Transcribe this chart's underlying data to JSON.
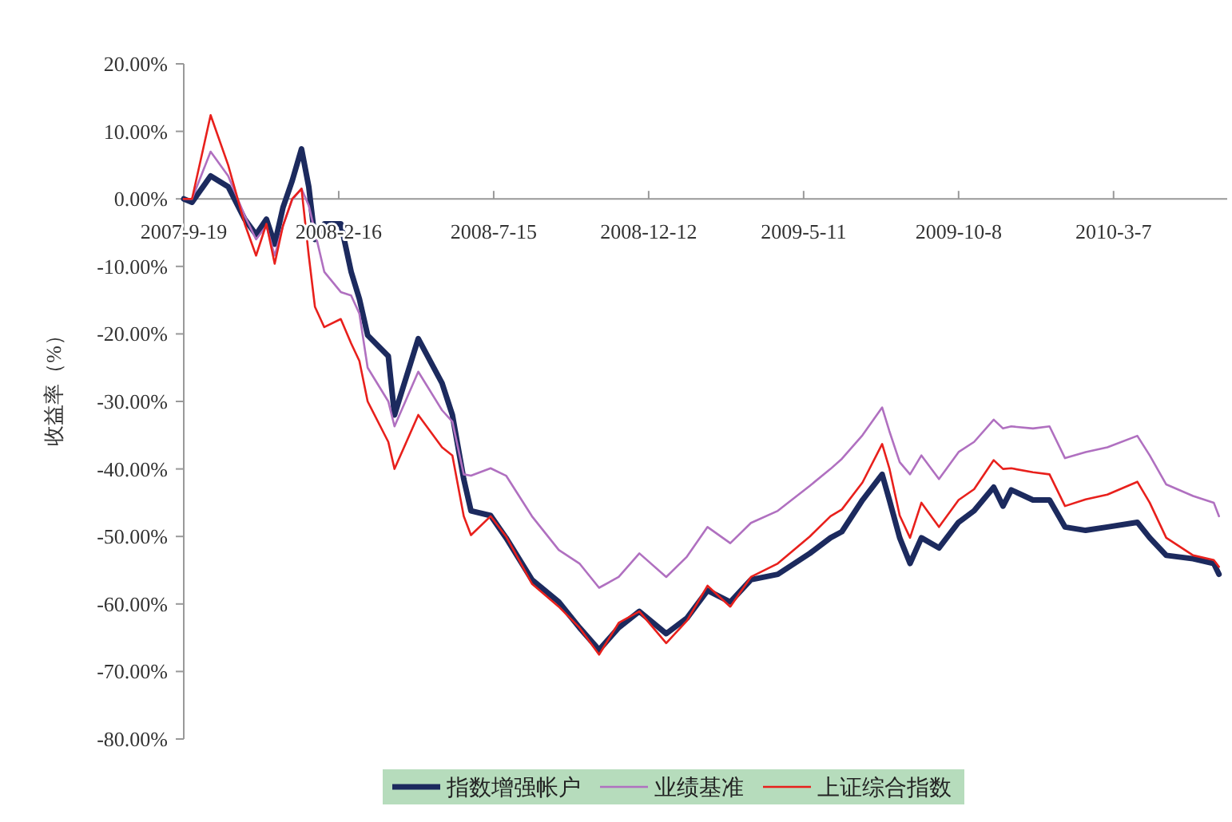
{
  "chart_data": {
    "type": "line",
    "ylabel": "收益率（%）",
    "x": [
      "2007-09-19",
      "2007-09-27",
      "2007-10-15",
      "2007-11-01",
      "2007-11-17",
      "2007-11-28",
      "2007-12-08",
      "2007-12-16",
      "2007-12-24",
      "2008-01-02",
      "2008-01-11",
      "2008-01-18",
      "2008-01-24",
      "2008-02-02",
      "2008-02-18",
      "2008-02-28",
      "2008-03-07",
      "2008-03-15",
      "2008-04-04",
      "2008-04-10",
      "2008-05-03",
      "2008-05-26",
      "2008-06-05",
      "2008-06-16",
      "2008-06-23",
      "2008-07-12",
      "2008-07-27",
      "2008-08-21",
      "2008-09-16",
      "2008-10-06",
      "2008-10-25",
      "2008-11-13",
      "2008-12-03",
      "2008-12-29",
      "2009-01-18",
      "2009-02-07",
      "2009-03-01",
      "2009-03-21",
      "2009-04-16",
      "2009-05-17",
      "2009-06-06",
      "2009-06-17",
      "2009-07-07",
      "2009-07-26",
      "2009-08-02",
      "2009-08-12",
      "2009-08-22",
      "2009-09-02",
      "2009-09-19",
      "2009-10-08",
      "2009-10-23",
      "2009-11-11",
      "2009-11-20",
      "2009-11-28",
      "2009-12-19",
      "2010-01-04",
      "2010-01-19",
      "2010-02-08",
      "2010-03-01",
      "2010-03-30",
      "2010-04-11",
      "2010-04-27",
      "2010-05-23",
      "2010-06-12",
      "2010-06-17"
    ],
    "series": [
      {
        "name": "指数增强帐户",
        "color": "#1c2a5e",
        "values": [
          0,
          -0.5,
          3.4,
          1.8,
          -3,
          -5.3,
          -3,
          -6.7,
          -1.3,
          2.7,
          7.4,
          1.8,
          -6,
          -3.7,
          -3.7,
          -10.8,
          -14.8,
          -20.2,
          -23.3,
          -32,
          -20.7,
          -27.3,
          -32,
          -41.5,
          -46.2,
          -46.9,
          -50.2,
          -56.4,
          -59.7,
          -63.5,
          -66.8,
          -63.5,
          -61.1,
          -64.4,
          -62.1,
          -58,
          -59.7,
          -56.4,
          -55.6,
          -52.5,
          -50.2,
          -49.3,
          -44.6,
          -40.8,
          -44.6,
          -50.2,
          -54,
          -50.2,
          -51.7,
          -47.9,
          -46.2,
          -42.7,
          -45.5,
          -43.1,
          -44.6,
          -44.6,
          -48.6,
          -49.1,
          -48.6,
          -47.9,
          -50.2,
          -52.8,
          -53.3,
          -54,
          -55.6
        ]
      },
      {
        "name": "业绩基准",
        "color": "#b070c0",
        "values": [
          0,
          0,
          7,
          3.4,
          -2.5,
          -6,
          -4,
          -8.4,
          -4,
          -0.1,
          1.5,
          -1,
          -4.9,
          -10.8,
          -13.8,
          -14.3,
          -17,
          -25,
          -30,
          -33.7,
          -25.6,
          -31.3,
          -33,
          -40.8,
          -41,
          -39.9,
          -41,
          -47,
          -52,
          -54,
          -57.6,
          -56,
          -52.5,
          -56,
          -53,
          -48.6,
          -51,
          -48,
          -46.2,
          -42.5,
          -40,
          -38.5,
          -35,
          -30.9,
          -34.4,
          -39,
          -40.8,
          -38,
          -41.5,
          -37.5,
          -36,
          -32.7,
          -34,
          -33.7,
          -34,
          -33.7,
          -38.4,
          -37.5,
          -36.8,
          -35.1,
          -38,
          -42.3,
          -44,
          -45,
          -47
        ]
      },
      {
        "name": "上证综合指数",
        "color": "#e8201c",
        "values": [
          0,
          0,
          12.4,
          5,
          -3.7,
          -8.4,
          -3.7,
          -9.6,
          -4,
          0,
          1.5,
          -8.4,
          -16,
          -19,
          -17.8,
          -21.4,
          -24,
          -30,
          -36,
          -40,
          -32,
          -36.8,
          -38,
          -47,
          -49.8,
          -47,
          -50,
          -57,
          -60.4,
          -63.5,
          -67.5,
          -62.8,
          -61.1,
          -65.8,
          -62.5,
          -57.3,
          -60.4,
          -56,
          -54,
          -50,
          -47,
          -46,
          -42,
          -36.3,
          -39.9,
          -46.9,
          -50.2,
          -45,
          -48.6,
          -44.6,
          -43,
          -38.7,
          -40,
          -39.9,
          -40.5,
          -40.8,
          -45.5,
          -44.5,
          -43.8,
          -41.9,
          -45,
          -50.2,
          -52.8,
          -53.5,
          -54.5
        ]
      }
    ],
    "xlim": [
      "2007-09-19",
      "2010-06-25"
    ],
    "xticks": [
      {
        "value": "2007-09-19",
        "label": "2007-9-19"
      },
      {
        "value": "2008-02-16",
        "label": "2008-2-16"
      },
      {
        "value": "2008-07-15",
        "label": "2008-7-15"
      },
      {
        "value": "2008-12-12",
        "label": "2008-12-12"
      },
      {
        "value": "2009-05-11",
        "label": "2009-5-11"
      },
      {
        "value": "2009-10-08",
        "label": "2009-10-8"
      },
      {
        "value": "2010-03-07",
        "label": "2010-3-7"
      }
    ],
    "ylim": [
      -80,
      20
    ],
    "yticks": [
      {
        "value": 20,
        "label": "20.00%"
      },
      {
        "value": 10,
        "label": "10.00%"
      },
      {
        "value": 0,
        "label": "0.00%"
      },
      {
        "value": -10,
        "label": "-10.00%"
      },
      {
        "value": -20,
        "label": "-20.00%"
      },
      {
        "value": -30,
        "label": "-30.00%"
      },
      {
        "value": -40,
        "label": "-40.00%"
      },
      {
        "value": -50,
        "label": "-50.00%"
      },
      {
        "value": -60,
        "label": "-60.00%"
      },
      {
        "value": -70,
        "label": "-70.00%"
      },
      {
        "value": -80,
        "label": "-80.00%"
      }
    ],
    "grid": false,
    "legend": "bottom",
    "marker": "none",
    "line_style": "solid"
  }
}
